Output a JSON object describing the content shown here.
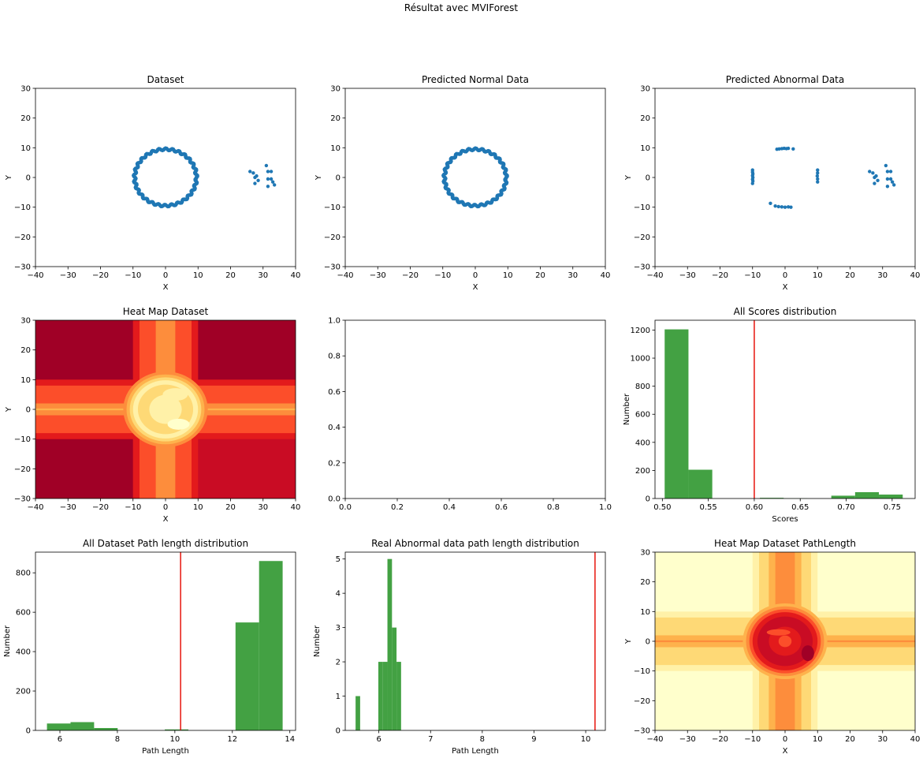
{
  "figure": {
    "suptitle": "Résultat avec MVIForest"
  },
  "colors": {
    "scatter": "#1f77b4",
    "hist": "#43a143",
    "threshold": "#e8231c",
    "heat_levels": [
      "#ffffcc",
      "#fff1a8",
      "#fed976",
      "#feb24c",
      "#fd8d3c",
      "#fc4e2a",
      "#e31a1c",
      "#c90c24",
      "#a00026"
    ]
  },
  "chart_data": [
    {
      "type": "scatter",
      "title": "Dataset",
      "xlabel": "X",
      "ylabel": "Y",
      "xlim": [
        -40,
        40
      ],
      "ylim": [
        -30,
        30
      ],
      "xticks": [
        -40,
        -30,
        -20,
        -10,
        0,
        10,
        20,
        30,
        40
      ],
      "yticks": [
        -30,
        -20,
        -10,
        0,
        10,
        20,
        30
      ],
      "ring": {
        "center": [
          0,
          0
        ],
        "radius": 9.5,
        "count": 180
      },
      "points": [
        [
          26,
          2
        ],
        [
          27,
          1.5
        ],
        [
          27.5,
          0
        ],
        [
          28,
          0.5
        ],
        [
          28.5,
          -1
        ],
        [
          27.5,
          -2
        ],
        [
          31,
          4
        ],
        [
          31.5,
          2
        ],
        [
          32.5,
          2
        ],
        [
          31.5,
          -0.5
        ],
        [
          32.5,
          -0.5
        ],
        [
          33,
          -1.5
        ],
        [
          31.5,
          -3
        ],
        [
          33.5,
          -2.5
        ]
      ]
    },
    {
      "type": "scatter",
      "title": "Predicted Normal Data",
      "xlabel": "X",
      "ylabel": "Y",
      "xlim": [
        -40,
        40
      ],
      "ylim": [
        -30,
        30
      ],
      "xticks": [
        -40,
        -30,
        -20,
        -10,
        0,
        10,
        20,
        30,
        40
      ],
      "yticks": [
        -30,
        -20,
        -10,
        0,
        10,
        20,
        30
      ],
      "ring": {
        "center": [
          0,
          0
        ],
        "radius": 9.5,
        "count": 180
      },
      "points": []
    },
    {
      "type": "scatter",
      "title": "Predicted Abnormal Data",
      "xlabel": "X",
      "ylabel": "Y",
      "xlim": [
        -40,
        40
      ],
      "ylim": [
        -30,
        30
      ],
      "xticks": [
        -40,
        -30,
        -20,
        -10,
        0,
        10,
        20,
        30,
        40
      ],
      "yticks": [
        -30,
        -20,
        -10,
        0,
        10,
        20,
        30
      ],
      "ring": null,
      "points": [
        [
          -10,
          2.5
        ],
        [
          -10,
          1.8
        ],
        [
          -9.9,
          1.2
        ],
        [
          -10,
          0.6
        ],
        [
          -9.9,
          0
        ],
        [
          -10,
          -0.6
        ],
        [
          -9.9,
          -1.2
        ],
        [
          -10,
          -2
        ],
        [
          -2.5,
          9.5
        ],
        [
          -1.8,
          9.6
        ],
        [
          -1,
          9.7
        ],
        [
          -0.3,
          9.8
        ],
        [
          0.4,
          9.7
        ],
        [
          1,
          9.8
        ],
        [
          2.5,
          9.6
        ],
        [
          10,
          2.5
        ],
        [
          10,
          1.5
        ],
        [
          9.9,
          0.5
        ],
        [
          10,
          -0.5
        ],
        [
          10,
          -1.5
        ],
        [
          -4.5,
          -8.7
        ],
        [
          -3,
          -9.6
        ],
        [
          -2,
          -9.8
        ],
        [
          -1,
          -9.9
        ],
        [
          0,
          -10
        ],
        [
          1,
          -9.9
        ],
        [
          1.8,
          -10
        ],
        [
          26,
          2
        ],
        [
          27,
          1.5
        ],
        [
          27.5,
          0
        ],
        [
          28,
          0.5
        ],
        [
          28.5,
          -1
        ],
        [
          27.5,
          -2
        ],
        [
          31,
          4
        ],
        [
          31.5,
          2
        ],
        [
          32.5,
          2
        ],
        [
          31.5,
          -0.5
        ],
        [
          32.5,
          -0.5
        ],
        [
          33,
          -1.5
        ],
        [
          31.5,
          -3
        ],
        [
          33.5,
          -2.5
        ]
      ]
    },
    {
      "type": "heatmap",
      "title": "Heat Map Dataset",
      "xlabel": "X",
      "ylabel": "Y",
      "xlim": [
        -40,
        40
      ],
      "ylim": [
        -30,
        30
      ],
      "xticks": [
        -40,
        -30,
        -20,
        -10,
        0,
        10,
        20,
        30,
        40
      ],
      "yticks": [
        -30,
        -20,
        -10,
        0,
        10,
        20,
        30
      ],
      "variant": "scores"
    },
    {
      "type": "empty",
      "title": "",
      "xlim": [
        0,
        1
      ],
      "ylim": [
        0,
        1
      ],
      "xticks": [
        "0.0",
        "0.2",
        "0.4",
        "0.6",
        "0.8",
        "1.0"
      ],
      "yticks": [
        "0.0",
        "0.2",
        "0.4",
        "0.6",
        "0.8",
        "1.0"
      ]
    },
    {
      "type": "bar",
      "title": "All Scores distribution",
      "xlabel": "Scores",
      "ylabel": "Number",
      "xlim": [
        0.492,
        0.775
      ],
      "ylim": [
        0,
        1270
      ],
      "xticks": [
        "0.50",
        "0.55",
        "0.60",
        "0.65",
        "0.70",
        "0.75"
      ],
      "yticks": [
        0,
        200,
        400,
        600,
        800,
        1000,
        1200
      ],
      "bins": [
        0.5025,
        0.5284,
        0.5543,
        0.5802,
        0.6061,
        0.632,
        0.6579,
        0.6838,
        0.7097,
        0.7356,
        0.7615
      ],
      "counts": [
        1205,
        205,
        0,
        0,
        5,
        1,
        0,
        20,
        45,
        28
      ],
      "threshold": 0.6
    },
    {
      "type": "bar",
      "title": "All Dataset Path length distribution",
      "xlabel": "Path Length",
      "ylabel": "Number",
      "xlim": [
        5.15,
        14.2
      ],
      "ylim": [
        0,
        905
      ],
      "xticks": [
        6,
        8,
        10,
        12,
        14
      ],
      "yticks": [
        0,
        200,
        400,
        600,
        800
      ],
      "bins": [
        5.55,
        6.37,
        7.19,
        8.01,
        8.83,
        9.65,
        10.47,
        11.29,
        12.11,
        12.93,
        13.75
      ],
      "counts": [
        35,
        42,
        12,
        0,
        0,
        5,
        0,
        0,
        548,
        860
      ],
      "threshold": 10.2
    },
    {
      "type": "bar",
      "title": "Real Abnormal data path length distribution",
      "xlabel": "Path Length",
      "ylabel": "Number",
      "xlim": [
        5.35,
        10.38
      ],
      "ylim": [
        0,
        5.2
      ],
      "xticks": [
        6,
        7,
        8,
        9,
        10
      ],
      "yticks": [
        0,
        1,
        2,
        3,
        4,
        5
      ],
      "bins": [
        5.55,
        5.638,
        5.726,
        5.814,
        5.902,
        5.99,
        6.078,
        6.166,
        6.254,
        6.342,
        6.43
      ],
      "counts": [
        1,
        0,
        0,
        0,
        0,
        2,
        2,
        5,
        3,
        2
      ],
      "threshold": 10.18
    },
    {
      "type": "heatmap",
      "title": "Heat Map Dataset PathLength",
      "xlabel": "X",
      "ylabel": "Y",
      "xlim": [
        -40,
        40
      ],
      "ylim": [
        -30,
        30
      ],
      "xticks": [
        -40,
        -30,
        -20,
        -10,
        0,
        10,
        20,
        30,
        40
      ],
      "yticks": [
        -30,
        -20,
        -10,
        0,
        10,
        20,
        30
      ],
      "variant": "path"
    }
  ]
}
